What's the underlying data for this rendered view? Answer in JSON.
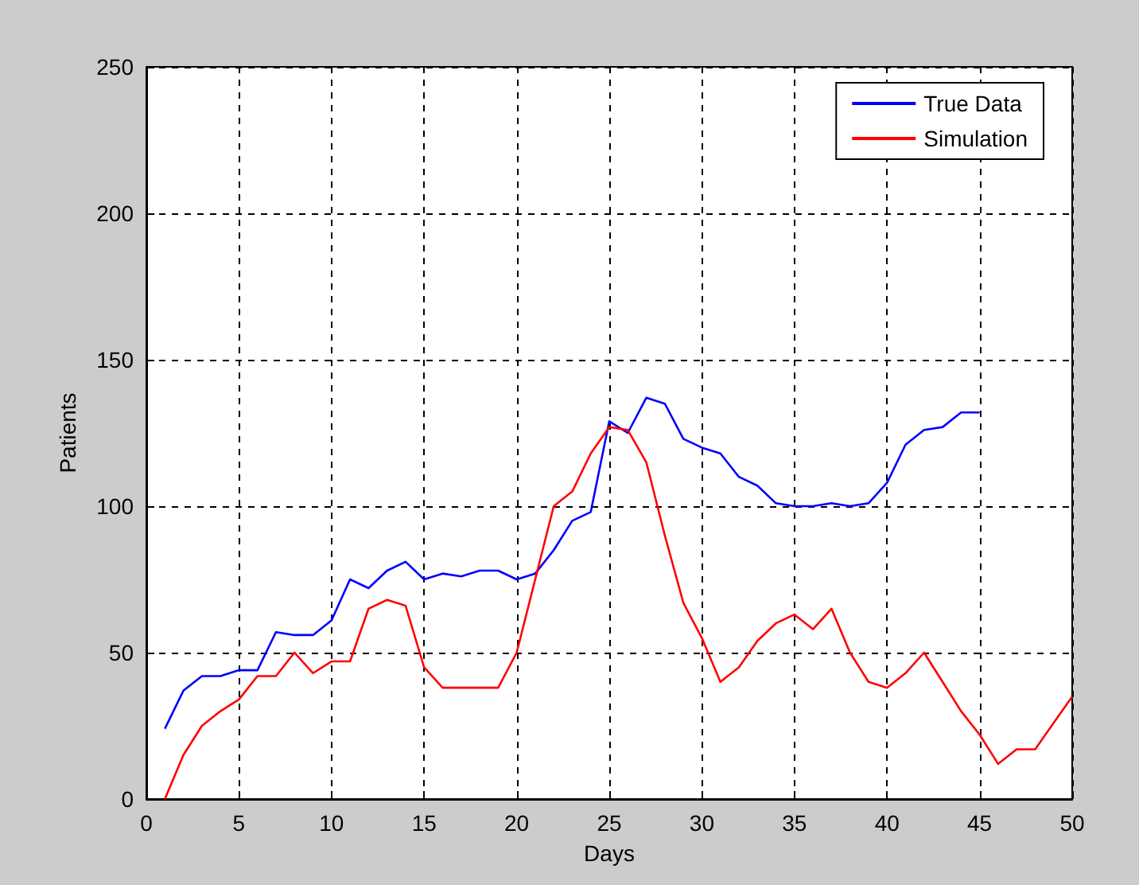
{
  "chart_data": {
    "type": "line",
    "xlabel": "Days",
    "ylabel": "Patients",
    "xlim": [
      0,
      50
    ],
    "xticks": [
      0,
      5,
      10,
      15,
      20,
      25,
      30,
      35,
      40,
      45,
      50
    ],
    "ylim": [
      0,
      250
    ],
    "yticks": [
      0,
      50,
      100,
      150,
      200,
      250
    ],
    "grid": true,
    "legend": "top right",
    "marker": "none",
    "line_style": "solid",
    "series": [
      {
        "name": "True Data",
        "color": "#0000ff",
        "x": [
          1,
          2,
          3,
          4,
          5,
          6,
          7,
          8,
          9,
          10,
          11,
          12,
          13,
          14,
          15,
          16,
          17,
          18,
          19,
          20,
          21,
          22,
          23,
          24,
          25,
          26,
          27,
          28,
          29,
          30,
          31,
          32,
          33,
          34,
          35,
          36,
          37,
          38,
          39,
          40,
          41,
          42,
          43,
          44,
          45
        ],
        "values": [
          24,
          37,
          42,
          42,
          44,
          44,
          57,
          56,
          56,
          61,
          75,
          72,
          78,
          81,
          75,
          77,
          76,
          78,
          78,
          75,
          77,
          85,
          95,
          98,
          129,
          125,
          137,
          135,
          123,
          120,
          118,
          110,
          107,
          101,
          100,
          100,
          101,
          100,
          101,
          108,
          121,
          126,
          127,
          132,
          132
        ]
      },
      {
        "name": "Simulation",
        "color": "#ff0000",
        "x": [
          1,
          2,
          3,
          4,
          5,
          6,
          7,
          8,
          9,
          10,
          11,
          12,
          13,
          14,
          15,
          16,
          17,
          18,
          19,
          20,
          21,
          22,
          23,
          24,
          25,
          26,
          27,
          28,
          29,
          30,
          31,
          32,
          33,
          34,
          35,
          36,
          37,
          38,
          39,
          40,
          41,
          42,
          43,
          44,
          45,
          46,
          47,
          48,
          49,
          50
        ],
        "values": [
          0,
          15,
          25,
          30,
          34,
          42,
          42,
          50,
          43,
          47,
          47,
          65,
          68,
          66,
          45,
          38,
          38,
          38,
          38,
          50,
          75,
          100,
          105,
          118,
          127,
          126,
          115,
          90,
          67,
          55,
          40,
          45,
          54,
          60,
          63,
          58,
          65,
          50,
          40,
          38,
          43,
          50,
          40,
          30,
          22,
          12,
          17,
          17,
          26,
          35
        ]
      }
    ]
  }
}
